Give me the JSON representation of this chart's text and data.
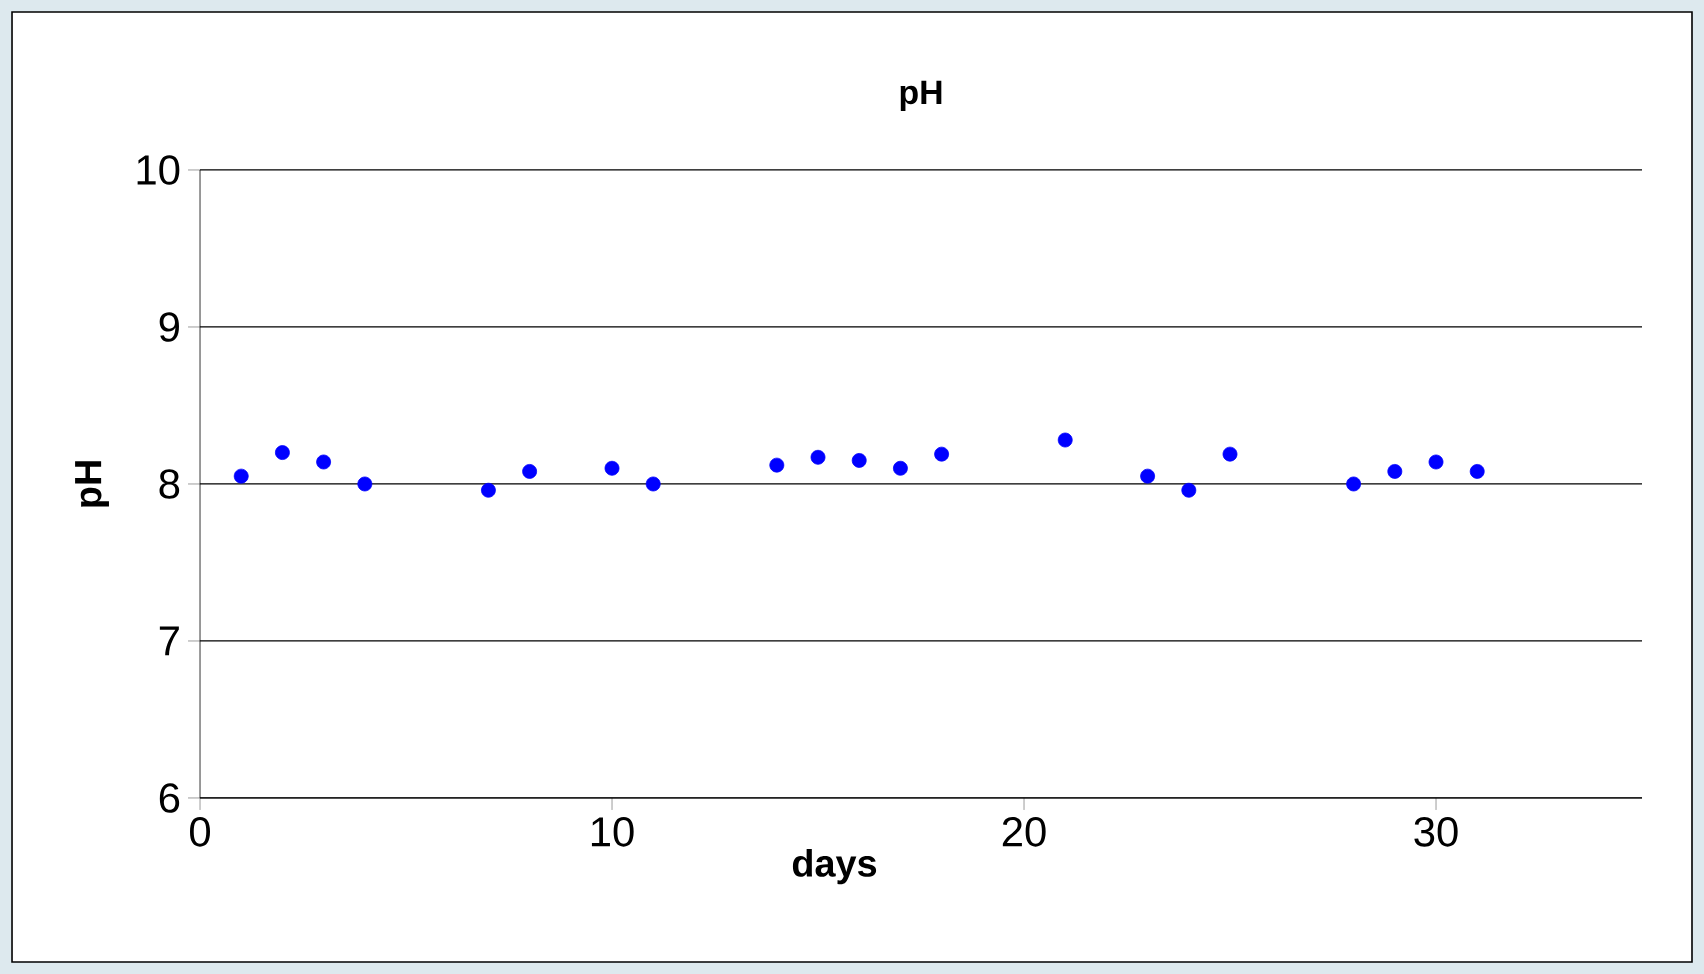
{
  "chart_data": {
    "type": "scatter",
    "title": "pH",
    "xlabel": "days",
    "ylabel": "pH",
    "x": [
      1,
      2,
      3,
      4,
      7,
      8,
      10,
      11,
      14,
      15,
      16,
      17,
      18,
      21,
      23,
      24,
      25,
      28,
      29,
      30,
      31
    ],
    "values": [
      8.05,
      8.2,
      8.14,
      8.0,
      7.96,
      8.08,
      8.1,
      8.0,
      8.12,
      8.17,
      8.15,
      8.1,
      8.19,
      8.28,
      8.05,
      7.96,
      8.19,
      8.0,
      8.08,
      8.14,
      8.08
    ],
    "color": "#0000ff",
    "marker": "circle",
    "xlim": [
      0,
      35
    ],
    "xticks": [
      0,
      10,
      20,
      30
    ],
    "ylim": [
      6,
      10
    ],
    "yticks": [
      6,
      7,
      8,
      9,
      10
    ],
    "grid": "y"
  }
}
